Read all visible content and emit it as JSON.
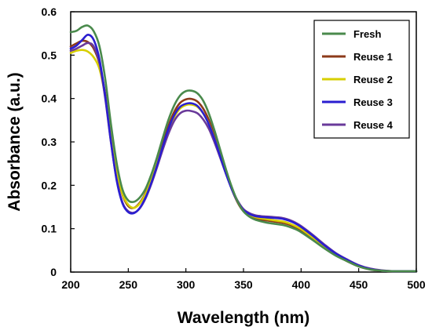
{
  "chart_data": {
    "type": "line",
    "xlabel": "Wavelength (nm)",
    "ylabel": "Absorbance (a.u.)",
    "xlim": [
      200,
      500
    ],
    "ylim": [
      0,
      0.6
    ],
    "xticks": [
      "200",
      "250",
      "300",
      "350",
      "400",
      "450",
      "500"
    ],
    "yticks": [
      "0",
      "0.1",
      "0.2",
      "0.3",
      "0.4",
      "0.5",
      "0.6"
    ],
    "grid": false,
    "legend_position": "top-right",
    "x": [
      200,
      205,
      210,
      215,
      220,
      225,
      230,
      235,
      240,
      245,
      250,
      255,
      260,
      265,
      270,
      275,
      280,
      285,
      290,
      295,
      300,
      305,
      310,
      315,
      320,
      325,
      330,
      335,
      340,
      345,
      350,
      355,
      360,
      365,
      370,
      375,
      380,
      385,
      390,
      395,
      400,
      410,
      420,
      430,
      440,
      450,
      460,
      470,
      480,
      490,
      500
    ],
    "series": [
      {
        "name": "Fresh",
        "color": "#4a8a4c",
        "values": [
          0.553,
          0.556,
          0.565,
          0.568,
          0.555,
          0.52,
          0.445,
          0.34,
          0.25,
          0.19,
          0.165,
          0.162,
          0.172,
          0.192,
          0.225,
          0.265,
          0.31,
          0.352,
          0.385,
          0.407,
          0.417,
          0.418,
          0.412,
          0.395,
          0.365,
          0.325,
          0.28,
          0.235,
          0.195,
          0.162,
          0.14,
          0.128,
          0.121,
          0.117,
          0.114,
          0.112,
          0.11,
          0.108,
          0.104,
          0.099,
          0.092,
          0.074,
          0.055,
          0.038,
          0.025,
          0.013,
          0.006,
          0.003,
          0.002,
          0.002,
          0.002
        ]
      },
      {
        "name": "Reuse 1",
        "color": "#8c3a1a",
        "values": [
          0.52,
          0.527,
          0.533,
          0.53,
          0.515,
          0.48,
          0.41,
          0.315,
          0.23,
          0.178,
          0.152,
          0.148,
          0.16,
          0.182,
          0.215,
          0.255,
          0.298,
          0.338,
          0.37,
          0.39,
          0.398,
          0.399,
          0.393,
          0.377,
          0.35,
          0.312,
          0.27,
          0.228,
          0.19,
          0.16,
          0.14,
          0.13,
          0.124,
          0.121,
          0.119,
          0.117,
          0.115,
          0.113,
          0.109,
          0.103,
          0.096,
          0.077,
          0.057,
          0.039,
          0.025,
          0.013,
          0.006,
          0.003,
          0.002,
          0.002,
          0.002
        ]
      },
      {
        "name": "Reuse 2",
        "color": "#d7cf00",
        "values": [
          0.505,
          0.51,
          0.512,
          0.508,
          0.495,
          0.468,
          0.405,
          0.318,
          0.235,
          0.18,
          0.155,
          0.148,
          0.158,
          0.18,
          0.212,
          0.25,
          0.29,
          0.328,
          0.358,
          0.377,
          0.385,
          0.386,
          0.381,
          0.366,
          0.341,
          0.306,
          0.266,
          0.227,
          0.191,
          0.162,
          0.143,
          0.133,
          0.127,
          0.124,
          0.122,
          0.12,
          0.118,
          0.116,
          0.112,
          0.106,
          0.099,
          0.08,
          0.06,
          0.041,
          0.027,
          0.014,
          0.007,
          0.003,
          0.002,
          0.002,
          0.002
        ]
      },
      {
        "name": "Reuse 3",
        "color": "#2a1ed0",
        "values": [
          0.515,
          0.522,
          0.535,
          0.547,
          0.535,
          0.49,
          0.405,
          0.3,
          0.21,
          0.158,
          0.138,
          0.136,
          0.148,
          0.172,
          0.206,
          0.246,
          0.29,
          0.331,
          0.362,
          0.381,
          0.388,
          0.389,
          0.383,
          0.366,
          0.34,
          0.305,
          0.265,
          0.225,
          0.19,
          0.162,
          0.143,
          0.134,
          0.129,
          0.127,
          0.126,
          0.125,
          0.124,
          0.122,
          0.118,
          0.112,
          0.104,
          0.084,
          0.062,
          0.043,
          0.028,
          0.015,
          0.007,
          0.003,
          0.002,
          0.002,
          0.002
        ]
      },
      {
        "name": "Reuse 4",
        "color": "#6a3a9a",
        "values": [
          0.51,
          0.515,
          0.522,
          0.528,
          0.52,
          0.482,
          0.4,
          0.298,
          0.212,
          0.16,
          0.14,
          0.137,
          0.147,
          0.17,
          0.203,
          0.242,
          0.283,
          0.32,
          0.349,
          0.366,
          0.372,
          0.371,
          0.366,
          0.352,
          0.33,
          0.298,
          0.262,
          0.225,
          0.191,
          0.164,
          0.145,
          0.136,
          0.131,
          0.129,
          0.128,
          0.127,
          0.126,
          0.124,
          0.12,
          0.114,
          0.106,
          0.086,
          0.064,
          0.044,
          0.029,
          0.016,
          0.008,
          0.004,
          0.002,
          0.002,
          0.002
        ]
      }
    ]
  }
}
